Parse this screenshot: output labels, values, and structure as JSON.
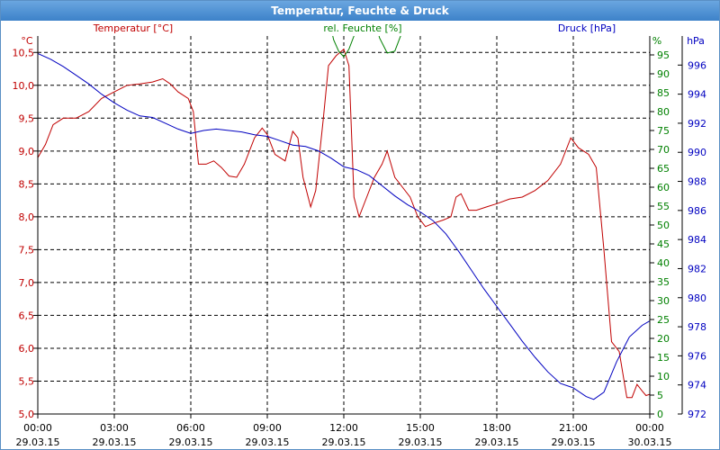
{
  "window": {
    "title": "Temperatur, Feuchte & Druck"
  },
  "colors": {
    "temperature": "#c00000",
    "humidity": "#008000",
    "pressure": "#0000c0",
    "grid": "#000000",
    "titlebar": "#3d82c9"
  },
  "chart_data": {
    "type": "line",
    "title": "Temperatur, Feuchte & Druck",
    "xlabel": "",
    "grid": true,
    "x_ticks": [
      {
        "time": "00:00",
        "date": "29.03.15"
      },
      {
        "time": "03:00",
        "date": "29.03.15"
      },
      {
        "time": "06:00",
        "date": "29.03.15"
      },
      {
        "time": "09:00",
        "date": "29.03.15"
      },
      {
        "time": "12:00",
        "date": "29.03.15"
      },
      {
        "time": "15:00",
        "date": "29.03.15"
      },
      {
        "time": "18:00",
        "date": "29.03.15"
      },
      {
        "time": "21:00",
        "date": "29.03.15"
      },
      {
        "time": "00:00",
        "date": "30.03.15"
      }
    ],
    "x_unit": "hours",
    "x_range": [
      0,
      24
    ],
    "axes": {
      "temperature": {
        "label": "Temperatur [°C]",
        "unit": "°C",
        "range": [
          5.0,
          10.75
        ],
        "ticks": [
          "5,0",
          "5,5",
          "6,0",
          "6,5",
          "7,0",
          "7,5",
          "8,0",
          "8,5",
          "9,0",
          "9,5",
          "10,0",
          "10,5"
        ]
      },
      "humidity": {
        "label": "rel. Feuchte [%]",
        "unit": "%",
        "range": [
          0,
          100
        ],
        "ticks": [
          "0",
          "5",
          "10",
          "15",
          "20",
          "25",
          "30",
          "35",
          "40",
          "45",
          "50",
          "55",
          "60",
          "65",
          "70",
          "75",
          "80",
          "85",
          "90",
          "95"
        ]
      },
      "pressure": {
        "label": "Druck [hPa]",
        "unit": "hPa",
        "range": [
          972,
          998
        ],
        "ticks": [
          "972",
          "974",
          "976",
          "978",
          "980",
          "982",
          "984",
          "986",
          "988",
          "990",
          "992",
          "994",
          "996"
        ]
      }
    },
    "series": [
      {
        "name": "Temperatur [°C]",
        "axis": "temperature",
        "points": [
          [
            0,
            8.9
          ],
          [
            0.3,
            9.1
          ],
          [
            0.6,
            9.4
          ],
          [
            1.0,
            9.5
          ],
          [
            1.5,
            9.5
          ],
          [
            2.0,
            9.6
          ],
          [
            2.5,
            9.8
          ],
          [
            3.0,
            9.9
          ],
          [
            3.5,
            10.0
          ],
          [
            4.0,
            10.02
          ],
          [
            4.5,
            10.05
          ],
          [
            4.9,
            10.1
          ],
          [
            5.2,
            10.02
          ],
          [
            5.5,
            9.9
          ],
          [
            5.9,
            9.8
          ],
          [
            6.1,
            9.6
          ],
          [
            6.3,
            8.8
          ],
          [
            6.6,
            8.8
          ],
          [
            6.9,
            8.85
          ],
          [
            7.2,
            8.75
          ],
          [
            7.5,
            8.62
          ],
          [
            7.8,
            8.6
          ],
          [
            8.1,
            8.8
          ],
          [
            8.5,
            9.2
          ],
          [
            8.8,
            9.35
          ],
          [
            9.0,
            9.25
          ],
          [
            9.3,
            8.95
          ],
          [
            9.7,
            8.85
          ],
          [
            10.0,
            9.3
          ],
          [
            10.2,
            9.2
          ],
          [
            10.4,
            8.6
          ],
          [
            10.7,
            8.15
          ],
          [
            10.9,
            8.4
          ],
          [
            11.2,
            9.5
          ],
          [
            11.4,
            10.3
          ],
          [
            11.7,
            10.45
          ],
          [
            12.0,
            10.55
          ],
          [
            12.2,
            10.3
          ],
          [
            12.4,
            8.3
          ],
          [
            12.6,
            8.0
          ],
          [
            12.9,
            8.3
          ],
          [
            13.2,
            8.6
          ],
          [
            13.5,
            8.8
          ],
          [
            13.7,
            9.0
          ],
          [
            14.0,
            8.6
          ],
          [
            14.3,
            8.45
          ],
          [
            14.6,
            8.3
          ],
          [
            14.9,
            8.0
          ],
          [
            15.2,
            7.85
          ],
          [
            15.5,
            7.9
          ],
          [
            15.9,
            7.95
          ],
          [
            16.2,
            8.0
          ],
          [
            16.4,
            8.3
          ],
          [
            16.6,
            8.35
          ],
          [
            16.9,
            8.1
          ],
          [
            17.2,
            8.1
          ],
          [
            17.6,
            8.15
          ],
          [
            18.0,
            8.2
          ],
          [
            18.5,
            8.27
          ],
          [
            19.0,
            8.3
          ],
          [
            19.5,
            8.4
          ],
          [
            20.0,
            8.55
          ],
          [
            20.5,
            8.8
          ],
          [
            20.9,
            9.2
          ],
          [
            21.2,
            9.05
          ],
          [
            21.6,
            8.95
          ],
          [
            21.9,
            8.75
          ],
          [
            22.2,
            7.5
          ],
          [
            22.5,
            6.1
          ],
          [
            22.8,
            5.95
          ],
          [
            23.1,
            5.25
          ],
          [
            23.3,
            5.25
          ],
          [
            23.5,
            5.45
          ],
          [
            23.7,
            5.35
          ],
          [
            23.85,
            5.28
          ],
          [
            24.0,
            5.3
          ]
        ]
      },
      {
        "name": "rel. Feuchte [%]",
        "axis": "humidity",
        "points": [
          [
            11.4,
            105
          ],
          [
            11.6,
            99
          ],
          [
            11.8,
            96
          ],
          [
            12.0,
            94.5
          ],
          [
            12.2,
            96.5
          ],
          [
            12.4,
            100
          ],
          [
            12.6,
            103
          ],
          [
            12.8,
            105
          ],
          [
            13.2,
            105
          ],
          [
            13.4,
            99.5
          ],
          [
            13.7,
            95.5
          ],
          [
            14.0,
            96
          ],
          [
            14.2,
            99.5
          ],
          [
            14.4,
            103
          ]
        ]
      },
      {
        "name": "Druck [hPa]",
        "axis": "pressure",
        "points": [
          [
            0,
            996.8
          ],
          [
            0.5,
            996.4
          ],
          [
            1.0,
            995.9
          ],
          [
            1.5,
            995.3
          ],
          [
            2.0,
            994.7
          ],
          [
            2.5,
            994.0
          ],
          [
            3.0,
            993.4
          ],
          [
            3.5,
            992.9
          ],
          [
            4.0,
            992.5
          ],
          [
            4.5,
            992.4
          ],
          [
            5.0,
            992.0
          ],
          [
            5.5,
            991.6
          ],
          [
            6.0,
            991.3
          ],
          [
            6.5,
            991.5
          ],
          [
            7.0,
            991.6
          ],
          [
            7.5,
            991.5
          ],
          [
            8.0,
            991.4
          ],
          [
            8.5,
            991.2
          ],
          [
            9.0,
            991.1
          ],
          [
            9.5,
            990.8
          ],
          [
            10.0,
            990.5
          ],
          [
            10.5,
            990.4
          ],
          [
            11.0,
            990.1
          ],
          [
            11.5,
            989.6
          ],
          [
            12.0,
            989.0
          ],
          [
            12.5,
            988.8
          ],
          [
            13.0,
            988.4
          ],
          [
            13.5,
            987.7
          ],
          [
            14.0,
            987.0
          ],
          [
            14.5,
            986.4
          ],
          [
            15.0,
            985.9
          ],
          [
            15.5,
            985.3
          ],
          [
            16.0,
            984.4
          ],
          [
            16.5,
            983.2
          ],
          [
            17.0,
            981.9
          ],
          [
            17.5,
            980.6
          ],
          [
            18.0,
            979.4
          ],
          [
            18.5,
            978.2
          ],
          [
            19.0,
            977.0
          ],
          [
            19.5,
            975.9
          ],
          [
            20.0,
            974.9
          ],
          [
            20.5,
            974.1
          ],
          [
            21.0,
            973.8
          ],
          [
            21.5,
            973.2
          ],
          [
            21.8,
            973.0
          ],
          [
            22.2,
            973.5
          ],
          [
            22.7,
            975.6
          ],
          [
            23.2,
            977.3
          ],
          [
            23.7,
            978.1
          ],
          [
            24.0,
            978.4
          ]
        ]
      }
    ]
  }
}
